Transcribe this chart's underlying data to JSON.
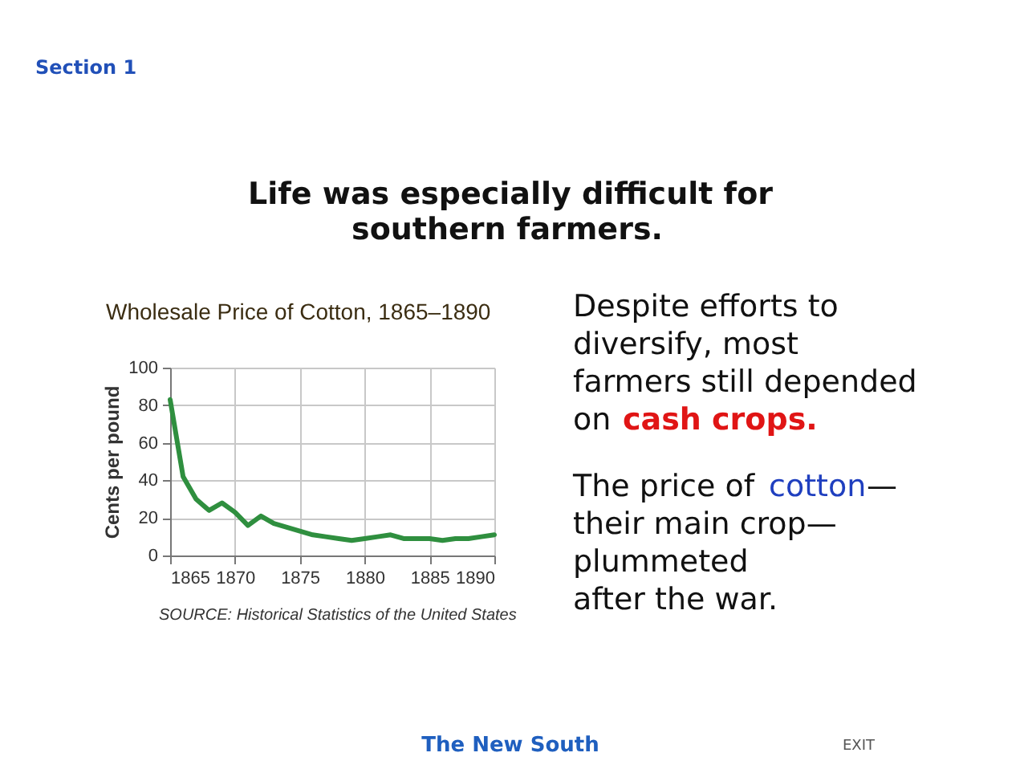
{
  "chart_data": {
    "type": "line",
    "title": "Wholesale Price of Cotton, 1865–1890",
    "ylabel": "Cents per pound",
    "x": [
      1865,
      1866,
      1867,
      1868,
      1869,
      1870,
      1871,
      1872,
      1873,
      1874,
      1875,
      1876,
      1877,
      1878,
      1879,
      1880,
      1881,
      1882,
      1883,
      1884,
      1885,
      1886,
      1887,
      1888,
      1889,
      1890
    ],
    "series": [
      {
        "color": "#2f8f3f",
        "values": [
          83,
          42,
          30,
          24,
          28,
          23,
          16,
          21,
          17,
          15,
          13,
          11,
          10,
          9,
          8,
          9,
          10,
          11,
          9,
          9,
          9,
          8,
          9,
          9,
          10,
          11
        ]
      }
    ],
    "xlim": [
      1865,
      1890
    ],
    "xticks": [
      1865,
      1870,
      1875,
      1880,
      1885,
      1890
    ],
    "ylim": [
      0,
      100
    ],
    "yticks": [
      0,
      20,
      40,
      60,
      80,
      100
    ],
    "grid": true,
    "line_style": "solid",
    "annotations": [
      "Section 1",
      "Life was especially difficult for",
      "southern farmers.",
      "Despite efforts to",
      "diversify, most",
      "farmers still depended",
      "on",
      "cash crops.",
      "The price of",
      "cotton",
      "—",
      "their main crop—",
      "plummeted",
      "after the war.",
      "SOURCE: Historical Statistics of the United States",
      "The New South",
      "EXIT"
    ]
  }
}
